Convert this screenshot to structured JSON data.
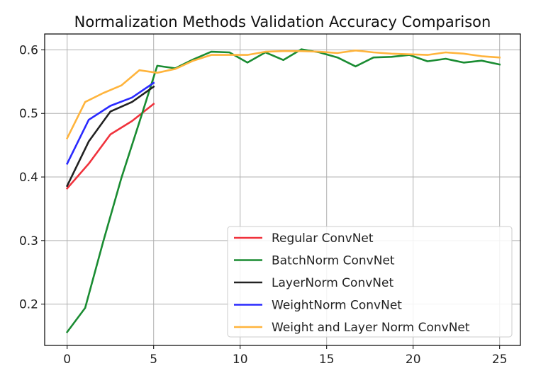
{
  "chart_data": {
    "type": "line",
    "title": "Normalization Methods Validation Accuracy Comparison",
    "xlabel": "",
    "ylabel": "",
    "xlim": [
      -1.3,
      26.2
    ],
    "ylim": [
      0.135,
      0.625
    ],
    "xticks": [
      0,
      5,
      10,
      15,
      20,
      25
    ],
    "yticks": [
      0.2,
      0.3,
      0.4,
      0.5,
      0.6
    ],
    "xtick_labels": [
      "0",
      "5",
      "10",
      "15",
      "20",
      "25"
    ],
    "ytick_labels": [
      "0.2",
      "0.3",
      "0.4",
      "0.5",
      "0.6"
    ],
    "grid": true,
    "legend_position": "lower-right",
    "series": [
      {
        "name": "Regular ConvNet",
        "color": "#f0323c",
        "x": [
          0,
          1.25,
          2.5,
          3.75,
          5
        ],
        "y": [
          0.382,
          0.421,
          0.467,
          0.488,
          0.515
        ]
      },
      {
        "name": "BatchNorm ConvNet",
        "color": "#1a8c32",
        "x": [
          0,
          1.04,
          2.08,
          3.13,
          4.17,
          5.21,
          6.25,
          7.29,
          8.33,
          9.38,
          10.42,
          11.46,
          12.5,
          13.54,
          14.58,
          15.63,
          16.67,
          17.71,
          18.75,
          19.79,
          20.83,
          21.88,
          22.92,
          23.96,
          25
        ],
        "y": [
          0.156,
          0.194,
          0.298,
          0.398,
          0.486,
          0.575,
          0.571,
          0.585,
          0.597,
          0.596,
          0.58,
          0.596,
          0.584,
          0.601,
          0.596,
          0.588,
          0.574,
          0.588,
          0.589,
          0.592,
          0.582,
          0.586,
          0.58,
          0.583,
          0.577
        ]
      },
      {
        "name": "LayerNorm ConvNet",
        "color": "#222222",
        "x": [
          0,
          1.25,
          2.5,
          3.75,
          5
        ],
        "y": [
          0.386,
          0.456,
          0.503,
          0.518,
          0.542
        ]
      },
      {
        "name": "WeightNorm ConvNet",
        "color": "#2a2aff",
        "x": [
          0,
          1.25,
          2.5,
          3.75,
          5
        ],
        "y": [
          0.421,
          0.49,
          0.512,
          0.525,
          0.548
        ]
      },
      {
        "name": "Weight and Layer Norm ConvNet",
        "color": "#ffb43c",
        "x": [
          0,
          1.04,
          2.08,
          3.13,
          4.17,
          5.21,
          6.25,
          7.29,
          8.33,
          9.38,
          10.42,
          11.46,
          12.5,
          13.54,
          14.58,
          15.63,
          16.67,
          17.71,
          18.75,
          19.79,
          20.83,
          21.88,
          22.92,
          23.96,
          25
        ],
        "y": [
          0.461,
          0.518,
          0.532,
          0.544,
          0.568,
          0.564,
          0.57,
          0.583,
          0.592,
          0.592,
          0.592,
          0.597,
          0.598,
          0.598,
          0.597,
          0.595,
          0.599,
          0.596,
          0.594,
          0.593,
          0.592,
          0.596,
          0.594,
          0.59,
          0.588
        ]
      }
    ]
  }
}
